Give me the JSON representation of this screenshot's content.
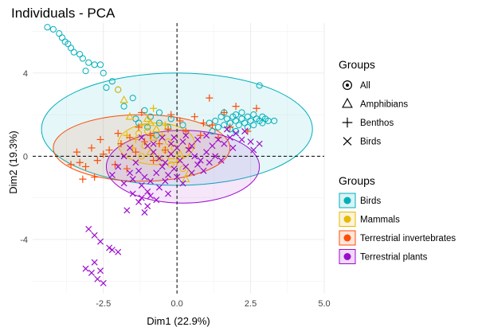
{
  "chart_data": {
    "type": "scatter",
    "title": "Individuals - PCA",
    "xlabel": "Dim1 (22.9%)",
    "ylabel": "Dim2 (19.3%)",
    "xlim": [
      -4.9,
      5.0
    ],
    "ylim": [
      -6.6,
      6.4
    ],
    "x_ticks": [
      -2.5,
      0.0,
      2.5,
      5.0
    ],
    "x_tick_labels": [
      "-2.5",
      "0.0",
      "2.5",
      "5.0"
    ],
    "y_ticks": [
      -4,
      0,
      4
    ],
    "y_tick_labels": [
      "-4",
      "0",
      "4"
    ],
    "grid": true,
    "reference_lines": {
      "x": 0,
      "y": 0,
      "style": "dashed"
    },
    "colors": {
      "Birds": "#00AFBB",
      "Mammals": "#E7B800",
      "Terrestrial invertebrates": "#FC4E07",
      "Terrestrial plants": "#9C0ACF"
    },
    "shape_legend": {
      "title": "Groups",
      "items": [
        {
          "label": "All",
          "shape": "circle-dot"
        },
        {
          "label": "Amphibians",
          "shape": "triangle"
        },
        {
          "label": "Benthos",
          "shape": "plus"
        },
        {
          "label": "Birds",
          "shape": "cross"
        }
      ]
    },
    "color_legend": {
      "title": "Groups",
      "items": [
        "Birds",
        "Mammals",
        "Terrestrial invertebrates",
        "Terrestrial plants"
      ]
    },
    "legend_position": "right",
    "ellipses": [
      {
        "group": "Birds",
        "center": [
          0.0,
          1.3
        ],
        "rx": 4.6,
        "ry": 2.7
      },
      {
        "group": "Terrestrial invertebrates",
        "center": [
          -1.2,
          0.4
        ],
        "rx": 3.0,
        "ry": 1.6
      },
      {
        "group": "Terrestrial plants",
        "center": [
          0.2,
          -0.5
        ],
        "rx": 2.6,
        "ry": 1.75
      },
      {
        "group": "Mammals",
        "center": [
          -0.7,
          0.6
        ],
        "rx": 1.3,
        "ry": 1.0
      }
    ],
    "series": [
      {
        "group": "Birds",
        "points": [
          [
            -4.4,
            6.2
          ],
          [
            -4.2,
            6.1
          ],
          [
            -4.0,
            5.9
          ],
          [
            -3.9,
            5.7
          ],
          [
            -3.8,
            5.5
          ],
          [
            -3.7,
            5.4
          ],
          [
            -3.6,
            5.2
          ],
          [
            -3.5,
            5.0
          ],
          [
            -3.3,
            4.9
          ],
          [
            -3.2,
            4.7
          ],
          [
            -3.0,
            4.5
          ],
          [
            -2.8,
            4.4
          ],
          [
            -2.6,
            4.4
          ],
          [
            -3.1,
            4.1
          ],
          [
            -2.5,
            4.0
          ],
          [
            -2.2,
            3.6
          ],
          [
            -2.0,
            3.2
          ],
          [
            -1.5,
            2.8
          ],
          [
            -1.1,
            2.2
          ],
          [
            -0.9,
            1.9
          ],
          [
            -1.4,
            1.8
          ],
          [
            -0.6,
            1.6
          ],
          [
            -0.3,
            1.4
          ],
          [
            -1.8,
            2.4
          ],
          [
            -2.4,
            3.3
          ],
          [
            -1.0,
            1.4
          ],
          [
            -0.7,
            1.0
          ],
          [
            1.1,
            1.6
          ],
          [
            1.3,
            1.7
          ],
          [
            1.5,
            1.9
          ],
          [
            1.6,
            1.5
          ],
          [
            1.7,
            1.8
          ],
          [
            1.8,
            1.6
          ],
          [
            1.9,
            1.9
          ],
          [
            2.0,
            1.7
          ],
          [
            2.1,
            1.5
          ],
          [
            2.2,
            1.8
          ],
          [
            2.3,
            1.6
          ],
          [
            2.4,
            1.9
          ],
          [
            2.5,
            1.7
          ],
          [
            2.6,
            1.5
          ],
          [
            2.7,
            1.8
          ],
          [
            2.8,
            1.7
          ],
          [
            2.9,
            1.6
          ],
          [
            3.0,
            1.8
          ],
          [
            3.1,
            1.7
          ],
          [
            1.4,
            1.4
          ],
          [
            2.0,
            2.0
          ],
          [
            2.2,
            2.1
          ],
          [
            1.6,
            2.1
          ],
          [
            2.4,
            1.4
          ],
          [
            2.6,
            2.0
          ],
          [
            1.8,
            1.3
          ],
          [
            2.9,
            1.9
          ],
          [
            3.3,
            1.7
          ],
          [
            -0.6,
            2.1
          ],
          [
            -0.2,
            1.8
          ],
          [
            0.2,
            1.5
          ],
          [
            -1.3,
            1.6
          ],
          [
            2.8,
            3.4
          ],
          [
            1.2,
            1.2
          ],
          [
            2.0,
            1.2
          ]
        ]
      },
      {
        "group": "Mammals",
        "points": [
          [
            -1.6,
            1.9
          ],
          [
            -1.2,
            1.5
          ],
          [
            -1.0,
            1.2
          ],
          [
            -0.8,
            0.9
          ],
          [
            -0.6,
            0.6
          ],
          [
            -0.4,
            0.3
          ],
          [
            -0.2,
            0.0
          ],
          [
            0.0,
            -0.3
          ],
          [
            0.2,
            -0.6
          ],
          [
            0.4,
            -0.8
          ],
          [
            -1.4,
            0.8
          ],
          [
            -1.1,
            0.5
          ],
          [
            -0.9,
            0.2
          ],
          [
            -1.7,
            1.0
          ],
          [
            -1.3,
            1.1
          ],
          [
            -0.7,
            1.3
          ],
          [
            -0.5,
            1.0
          ],
          [
            -0.3,
            0.7
          ],
          [
            -0.9,
            1.6
          ],
          [
            -1.5,
            0.4
          ],
          [
            -0.1,
            0.4
          ],
          [
            0.1,
            0.1
          ],
          [
            -0.6,
            -0.1
          ],
          [
            -1.2,
            0.0
          ],
          [
            -1.0,
            1.8
          ],
          [
            -0.4,
            1.5
          ],
          [
            -2.0,
            3.2
          ],
          [
            -1.8,
            2.7
          ],
          [
            -0.8,
            2.3
          ],
          [
            -0.2,
            -0.4
          ],
          [
            0.3,
            -1.1
          ]
        ]
      },
      {
        "group": "Terrestrial invertebrates",
        "points": [
          [
            -3.4,
            0.2
          ],
          [
            -3.3,
            -0.3
          ],
          [
            -3.1,
            -0.5
          ],
          [
            -3.2,
            -1.1
          ],
          [
            -2.9,
            0.4
          ],
          [
            -2.6,
            0.8
          ],
          [
            -2.7,
            -0.2
          ],
          [
            -2.3,
            0.3
          ],
          [
            -2.1,
            -0.4
          ],
          [
            -1.9,
            0.6
          ],
          [
            -1.6,
            0.9
          ],
          [
            -1.4,
            0.2
          ],
          [
            -1.1,
            0.7
          ],
          [
            -0.9,
            1.0
          ],
          [
            -0.6,
            0.6
          ],
          [
            -0.3,
            1.3
          ],
          [
            0.1,
            1.7
          ],
          [
            0.3,
            1.2
          ],
          [
            0.6,
            1.9
          ],
          [
            0.9,
            1.6
          ],
          [
            1.2,
            1.5
          ],
          [
            1.6,
            2.1
          ],
          [
            2.0,
            2.4
          ],
          [
            1.1,
            2.8
          ],
          [
            -1.3,
            1.4
          ],
          [
            -2.0,
            1.1
          ],
          [
            -2.5,
            0.1
          ],
          [
            -1.7,
            -0.6
          ],
          [
            -0.8,
            -0.2
          ],
          [
            -0.4,
            0.3
          ],
          [
            0.4,
            0.4
          ],
          [
            0.8,
            1.0
          ],
          [
            1.4,
            0.9
          ],
          [
            1.8,
            1.4
          ],
          [
            2.4,
            1.2
          ],
          [
            2.7,
            2.3
          ],
          [
            -3.6,
            -0.4
          ],
          [
            -2.8,
            -1.0
          ],
          [
            -0.2,
            2.0
          ],
          [
            -1.2,
            2.1
          ]
        ]
      },
      {
        "group": "Terrestrial plants",
        "points": [
          [
            -1.2,
            0.9
          ],
          [
            -1.0,
            0.5
          ],
          [
            -0.8,
            0.2
          ],
          [
            -0.6,
            -0.1
          ],
          [
            -0.4,
            -0.3
          ],
          [
            -0.2,
            0.1
          ],
          [
            0.0,
            0.4
          ],
          [
            0.2,
            0.7
          ],
          [
            0.4,
            0.3
          ],
          [
            0.6,
            0.0
          ],
          [
            0.8,
            -0.2
          ],
          [
            1.0,
            0.2
          ],
          [
            1.2,
            0.5
          ],
          [
            1.4,
            0.8
          ],
          [
            1.6,
            0.6
          ],
          [
            1.8,
            0.9
          ],
          [
            2.0,
            1.1
          ],
          [
            2.2,
            0.8
          ],
          [
            2.5,
            0.7
          ],
          [
            2.8,
            0.6
          ],
          [
            -1.4,
            -0.3
          ],
          [
            -1.3,
            -0.7
          ],
          [
            -1.1,
            -1.0
          ],
          [
            -1.2,
            -1.4
          ],
          [
            -1.0,
            -1.7
          ],
          [
            -0.9,
            -1.2
          ],
          [
            -1.5,
            -1.1
          ],
          [
            -1.6,
            -0.8
          ],
          [
            -0.7,
            -0.8
          ],
          [
            -0.5,
            -0.5
          ],
          [
            -0.3,
            -0.9
          ],
          [
            -0.1,
            -0.6
          ],
          [
            0.1,
            -0.2
          ],
          [
            0.3,
            -0.5
          ],
          [
            0.5,
            -0.8
          ],
          [
            0.7,
            -0.4
          ],
          [
            0.9,
            -0.7
          ],
          [
            1.1,
            -0.3
          ],
          [
            1.3,
            0.0
          ],
          [
            1.5,
            -0.2
          ],
          [
            -0.8,
            0.6
          ],
          [
            -0.5,
            0.9
          ],
          [
            -0.2,
            0.6
          ],
          [
            0.3,
            1.0
          ],
          [
            0.7,
            0.8
          ],
          [
            1.0,
            1.0
          ],
          [
            1.7,
            1.3
          ],
          [
            2.3,
            1.2
          ],
          [
            -1.2,
            -2.0
          ],
          [
            -1.0,
            -2.4
          ],
          [
            -1.1,
            -2.7
          ],
          [
            -1.3,
            -2.2
          ],
          [
            -0.9,
            -1.9
          ],
          [
            -0.6,
            -1.5
          ],
          [
            -0.4,
            -1.2
          ],
          [
            0.0,
            -1.0
          ],
          [
            0.2,
            -1.3
          ],
          [
            -0.7,
            -2.1
          ],
          [
            -1.5,
            -1.8
          ],
          [
            -1.8,
            -1.3
          ],
          [
            -2.2,
            -0.9
          ],
          [
            -2.0,
            -0.5
          ],
          [
            -1.8,
            0.0
          ],
          [
            -1.6,
            0.4
          ],
          [
            -0.1,
            0.9
          ],
          [
            0.5,
            0.5
          ],
          [
            1.9,
            0.4
          ],
          [
            2.6,
            0.3
          ],
          [
            -3.0,
            -3.5
          ],
          [
            -2.8,
            -3.8
          ],
          [
            -2.6,
            -4.1
          ],
          [
            -2.3,
            -4.4
          ],
          [
            -2.2,
            -4.5
          ],
          [
            -2.0,
            -4.6
          ],
          [
            -3.1,
            -5.4
          ],
          [
            -2.9,
            -5.6
          ],
          [
            -2.7,
            -5.9
          ],
          [
            -2.5,
            -6.1
          ],
          [
            -2.8,
            -5.1
          ],
          [
            -2.6,
            -5.5
          ],
          [
            -1.7,
            -2.6
          ],
          [
            -0.3,
            -1.8
          ]
        ]
      }
    ]
  }
}
